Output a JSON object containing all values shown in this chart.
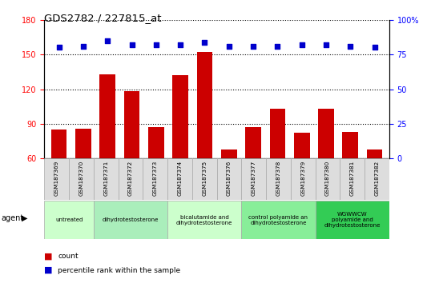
{
  "title": "GDS2782 / 227815_at",
  "samples": [
    "GSM187369",
    "GSM187370",
    "GSM187371",
    "GSM187372",
    "GSM187373",
    "GSM187374",
    "GSM187375",
    "GSM187376",
    "GSM187377",
    "GSM187378",
    "GSM187379",
    "GSM187380",
    "GSM187381",
    "GSM187382"
  ],
  "bar_values": [
    85,
    86,
    133,
    118,
    87,
    132,
    152,
    68,
    87,
    103,
    82,
    103,
    83,
    68
  ],
  "dot_values": [
    80,
    81,
    85,
    82,
    82,
    82,
    84,
    81,
    81,
    81,
    82,
    82,
    81,
    80
  ],
  "ylim_left": [
    60,
    180
  ],
  "ylim_right": [
    0,
    100
  ],
  "yticks_left": [
    60,
    90,
    120,
    150,
    180
  ],
  "yticks_right": [
    0,
    25,
    50,
    75,
    100
  ],
  "yticklabels_right": [
    "0",
    "25",
    "50",
    "75",
    "100%"
  ],
  "bar_color": "#cc0000",
  "dot_color": "#0000cc",
  "groups": [
    {
      "label": "untreated",
      "start": 0,
      "end": 2,
      "color": "#ccffcc"
    },
    {
      "label": "dihydrotestosterone",
      "start": 2,
      "end": 5,
      "color": "#aaeebb"
    },
    {
      "label": "bicalutamide and\ndihydrotestosterone",
      "start": 5,
      "end": 8,
      "color": "#ccffcc"
    },
    {
      "label": "control polyamide an\ndihydrotestosterone",
      "start": 8,
      "end": 11,
      "color": "#88ee99"
    },
    {
      "label": "WGWWCW\npolyamide and\ndihydrotestosterone",
      "start": 11,
      "end": 14,
      "color": "#33cc55"
    }
  ],
  "agent_label": "agent",
  "legend_count_color": "#cc0000",
  "legend_dot_color": "#0000cc"
}
